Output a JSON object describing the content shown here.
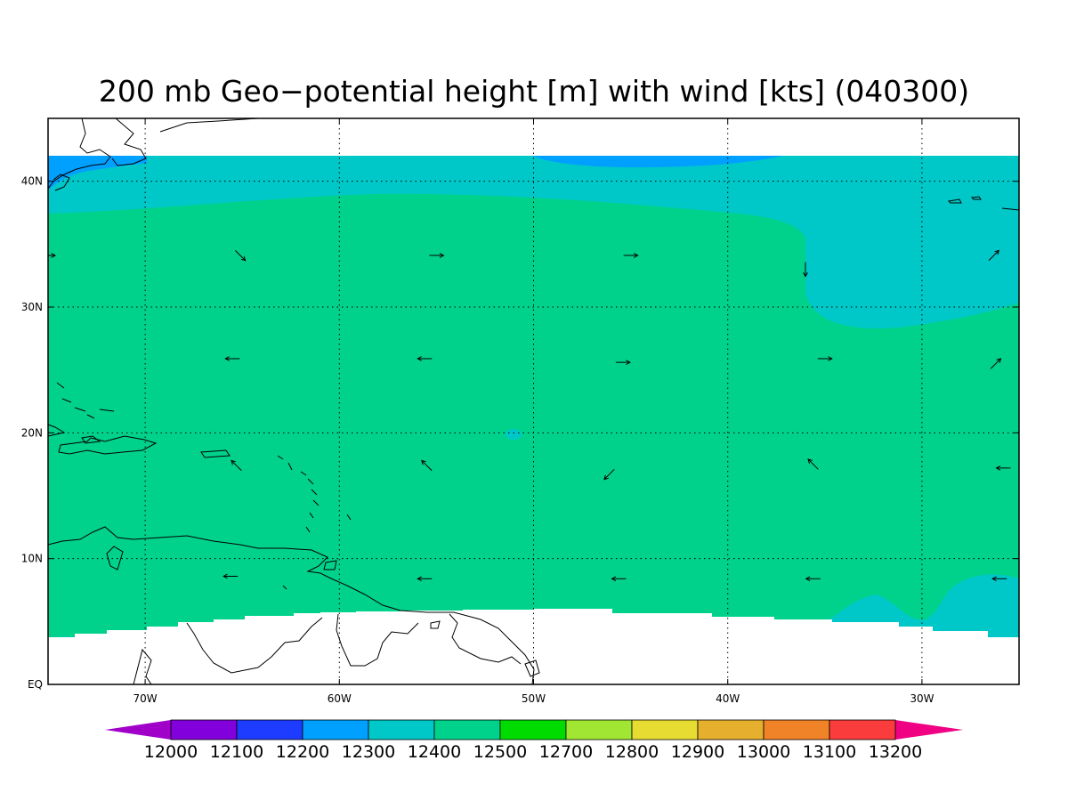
{
  "title": "200 mb Geo−potential height [m] with wind [kts] (040300)",
  "map": {
    "projection": "lat-lon",
    "lon_range": [
      -75,
      -25
    ],
    "lat_range": [
      0,
      45
    ],
    "grid": "dotted",
    "lon_ticks": [
      {
        "lon": -70,
        "label": "70W"
      },
      {
        "lon": -60,
        "label": "60W"
      },
      {
        "lon": -50,
        "label": "50W"
      },
      {
        "lon": -40,
        "label": "40W"
      },
      {
        "lon": -30,
        "label": "30W"
      }
    ],
    "lat_ticks": [
      {
        "lat": 0,
        "label": "EQ"
      },
      {
        "lat": 10,
        "label": "10N"
      },
      {
        "lat": 20,
        "label": "20N"
      },
      {
        "lat": 30,
        "label": "30N"
      },
      {
        "lat": 40,
        "label": "40N"
      }
    ]
  },
  "fields": {
    "12300": "#00a0ff",
    "12400": "#00c8c8",
    "12500": "#00d28c",
    "no_data": "#ffffff"
  },
  "wind_vectors": [
    {
      "lon": -75.0,
      "lat": 34.1,
      "u": 1,
      "v": 0
    },
    {
      "lon": -65.1,
      "lat": 34.1,
      "u": 1,
      "v": -1
    },
    {
      "lon": -55.0,
      "lat": 34.1,
      "u": 1,
      "v": 0
    },
    {
      "lon": -45.0,
      "lat": 34.1,
      "u": 1,
      "v": 0
    },
    {
      "lon": -36.0,
      "lat": 33.0,
      "u": 0,
      "v": -1
    },
    {
      "lon": -26.3,
      "lat": 34.1,
      "u": 1,
      "v": 1
    },
    {
      "lon": -65.5,
      "lat": 25.9,
      "u": -1,
      "v": 0
    },
    {
      "lon": -55.6,
      "lat": 25.9,
      "u": -1,
      "v": 0
    },
    {
      "lon": -45.4,
      "lat": 25.6,
      "u": 1,
      "v": 0
    },
    {
      "lon": -35.0,
      "lat": 25.9,
      "u": 1,
      "v": 0
    },
    {
      "lon": -26.2,
      "lat": 25.5,
      "u": 1,
      "v": 1
    },
    {
      "lon": -65.3,
      "lat": 17.4,
      "u": -1,
      "v": 1
    },
    {
      "lon": -55.5,
      "lat": 17.4,
      "u": -1,
      "v": 1
    },
    {
      "lon": -46.1,
      "lat": 16.7,
      "u": -1,
      "v": -1
    },
    {
      "lon": -35.6,
      "lat": 17.5,
      "u": -1,
      "v": 1
    },
    {
      "lon": -25.8,
      "lat": 17.2,
      "u": -1,
      "v": 0
    },
    {
      "lon": -65.6,
      "lat": 8.6,
      "u": -1,
      "v": 0
    },
    {
      "lon": -55.6,
      "lat": 8.4,
      "u": -1,
      "v": 0
    },
    {
      "lon": -45.6,
      "lat": 8.4,
      "u": -1,
      "v": 0
    },
    {
      "lon": -35.6,
      "lat": 8.4,
      "u": -1,
      "v": 0
    },
    {
      "lon": -26.0,
      "lat": 8.4,
      "u": -1,
      "v": 0
    }
  ],
  "colorbar": {
    "type": "colorbar",
    "extend": "both",
    "labels": [
      "12000",
      "12100",
      "12200",
      "12300",
      "12400",
      "12500",
      "12700",
      "12800",
      "12900",
      "13000",
      "13100",
      "13200"
    ],
    "low_color": "#a000c8",
    "high_color": "#f00082",
    "colors": [
      "#8200dc",
      "#1e3cff",
      "#00a0ff",
      "#00c8c8",
      "#00d28c",
      "#00dc00",
      "#a0e632",
      "#e6dc32",
      "#e6af2d",
      "#f08228",
      "#fa3c3c"
    ]
  }
}
